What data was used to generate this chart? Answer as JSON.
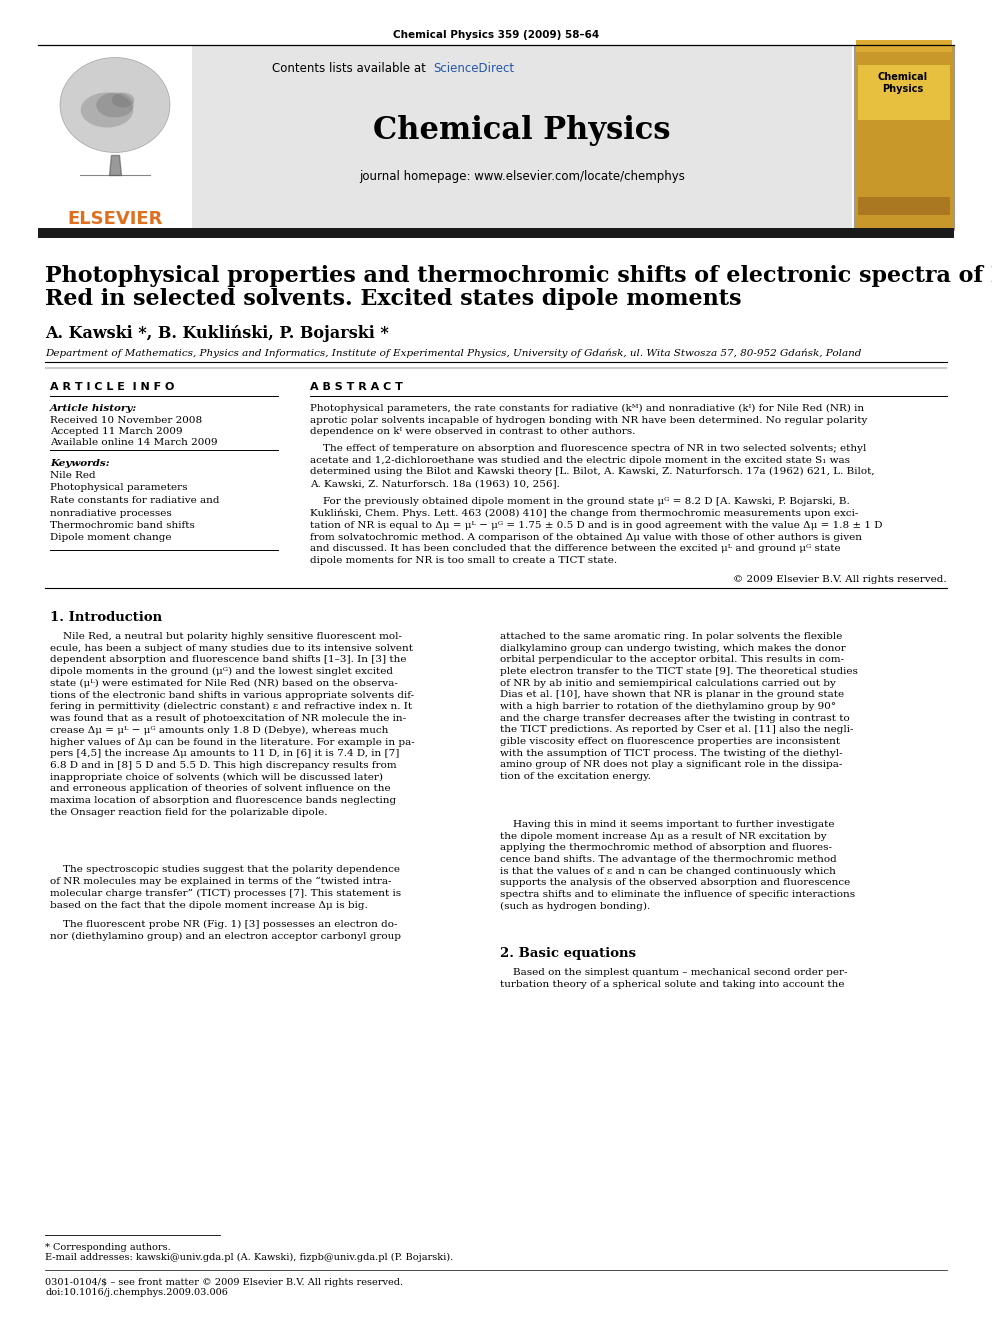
{
  "journal_citation": "Chemical Physics 359 (2009) 58–64",
  "contents_text": "Contents lists available at ",
  "sciencedirect_text": "ScienceDirect",
  "journal_name": "Chemical Physics",
  "homepage_text": "journal homepage: www.elsevier.com/locate/chemphys",
  "elsevier_text": "ELSEVIER",
  "paper_title_line1": "Photophysical properties and thermochromic shifts of electronic spectra of Nile",
  "paper_title_line2": "Red in selected solvents. Excited states dipole moments",
  "authors": "A. Kawski *, B. Kukliński, P. Bojarski *",
  "affiliation": "Department of Mathematics, Physics and Informatics, Institute of Experimental Physics, University of Gdańsk, ul. Wita Stwosza 57, 80-952 Gdańsk, Poland",
  "article_info_header": "A R T I C L E  I N F O",
  "abstract_header": "A B S T R A C T",
  "article_history_label": "Article history:",
  "received": "Received 10 November 2008",
  "accepted": "Accepted 11 March 2009",
  "available": "Available online 14 March 2009",
  "keywords_label": "Keywords:",
  "keywords": [
    "Nile Red",
    "Photophysical parameters",
    "Rate constants for radiative and",
    "nonradiative processes",
    "Thermochromic band shifts",
    "Dipole moment change"
  ],
  "abstract_p1": "Photophysical parameters, the rate constants for radiative (kᴹ) and nonradiative (kᴵ) for Nile Red (NR) in\naprotic polar solvents incapable of hydrogen bonding with NR have been determined. No regular polarity\ndependence on kᴵ were observed in contrast to other authors.",
  "abstract_p2": "    The effect of temperature on absorption and fluorescence spectra of NR in two selected solvents; ethyl\nacetate and 1,2-dichloroethane was studied and the electric dipole moment in the excited state S₁ was\ndetermined using the Bilot and Kawski theory [L. Bilot, A. Kawski, Z. Naturforsch. 17a (1962) 621, L. Bilot,\nA. Kawski, Z. Naturforsch. 18a (1963) 10, 256].",
  "abstract_p3": "    For the previously obtained dipole moment in the ground state μᴳ = 8.2 D [A. Kawski, P. Bojarski, B.\nKukliński, Chem. Phys. Lett. 463 (2008) 410] the change from thermochromic measurements upon exci-\ntation of NR is equal to Δμ = μᴸ − μᴳ = 1.75 ± 0.5 D and is in good agreement with the value Δμ = 1.8 ± 1 D\nfrom solvatochromic method. A comparison of the obtained Δμ value with those of other authors is given\nand discussed. It has been concluded that the difference between the excited μᴸ and ground μᴳ state\ndipole moments for NR is too small to create a TICT state.",
  "copyright": "© 2009 Elsevier B.V. All rights reserved.",
  "intro_header": "1. Introduction",
  "intro_c1_p1": "    Nile Red, a neutral but polarity highly sensitive fluorescent mol-\necule, has been a subject of many studies due to its intensive solvent\ndependent absorption and fluorescence band shifts [1–3]. In [3] the\ndipole moments in the ground (μᴳ) and the lowest singlet excited\nstate (μᴸ) were estimated for Nile Red (NR) based on the observa-\ntions of the electronic band shifts in various appropriate solvents dif-\nfering in permittivity (dielectric constant) ε and refractive index n. It\nwas found that as a result of photoexcitation of NR molecule the in-\ncrease Δμ = μᴸ − μᴳ amounts only 1.8 D (Debye), whereas much\nhigher values of Δμ can be found in the literature. For example in pa-\npers [4,5] the increase Δμ amounts to 11 D, in [6] it is 7.4 D, in [7]\n6.8 D and in [8] 5 D and 5.5 D. This high discrepancy results from\ninappropriate choice of solvents (which will be discussed later)\nand erroneous application of theories of solvent influence on the\nmaxima location of absorption and fluorescence bands neglecting\nthe Onsager reaction field for the polarizable dipole.",
  "intro_c1_p2": "    The spectroscopic studies suggest that the polarity dependence\nof NR molecules may be explained in terms of the “twisted intra-\nmolecular charge transfer” (TICT) processes [7]. This statement is\nbased on the fact that the dipole moment increase Δμ is big.",
  "intro_c1_p3": "    The fluorescent probe NR (Fig. 1) [3] possesses an electron do-\nnor (diethylamino group) and an electron acceptor carbonyl group",
  "intro_c2_p1": "attached to the same aromatic ring. In polar solvents the flexible\ndialkylamino group can undergo twisting, which makes the donor\norbital perpendicular to the acceptor orbital. This results in com-\nplete electron transfer to the TICT state [9]. The theoretical studies\nof NR by ab initio and semiempirical calculations carried out by\nDias et al. [10], have shown that NR is planar in the ground state\nwith a high barrier to rotation of the diethylamino group by 90°\nand the charge transfer decreases after the twisting in contrast to\nthe TICT predictions. As reported by Cser et al. [11] also the negli-\ngible viscosity effect on fluorescence properties are inconsistent\nwith the assumption of TICT process. The twisting of the diethyl-\namino group of NR does not play a significant role in the dissipa-\ntion of the excitation energy.",
  "intro_c2_p2": "    Having this in mind it seems important to further investigate\nthe dipole moment increase Δμ as a result of NR excitation by\napplying the thermochromic method of absorption and fluores-\ncence band shifts. The advantage of the thermochromic method\nis that the values of ε and n can be changed continuously which\nsupports the analysis of the observed absorption and fluorescence\nspectra shifts and to eliminate the influence of specific interactions\n(such as hydrogen bonding).",
  "section2_header": "2. Basic equations",
  "section2_text": "    Based on the simplest quantum – mechanical second order per-\nturbation theory of a spherical solute and taking into account the",
  "footer_star": "* Corresponding authors.",
  "footer_email": "E-mail addresses: kawski@univ.gda.pl (A. Kawski), fizpb@univ.gda.pl (P. Bojarski).",
  "footer_copy": "0301-0104/$ – see front matter © 2009 Elsevier B.V. All rights reserved.",
  "footer_doi": "doi:10.1016/j.chemphys.2009.03.006",
  "bg_color": "#ffffff",
  "gray_bg": "#e5e5e5",
  "black_bar": "#1a1a1a",
  "orange": "#e07020",
  "blue": "#2255aa",
  "cover_bg": "#c8982a",
  "cover_inner": "#d4aa44"
}
